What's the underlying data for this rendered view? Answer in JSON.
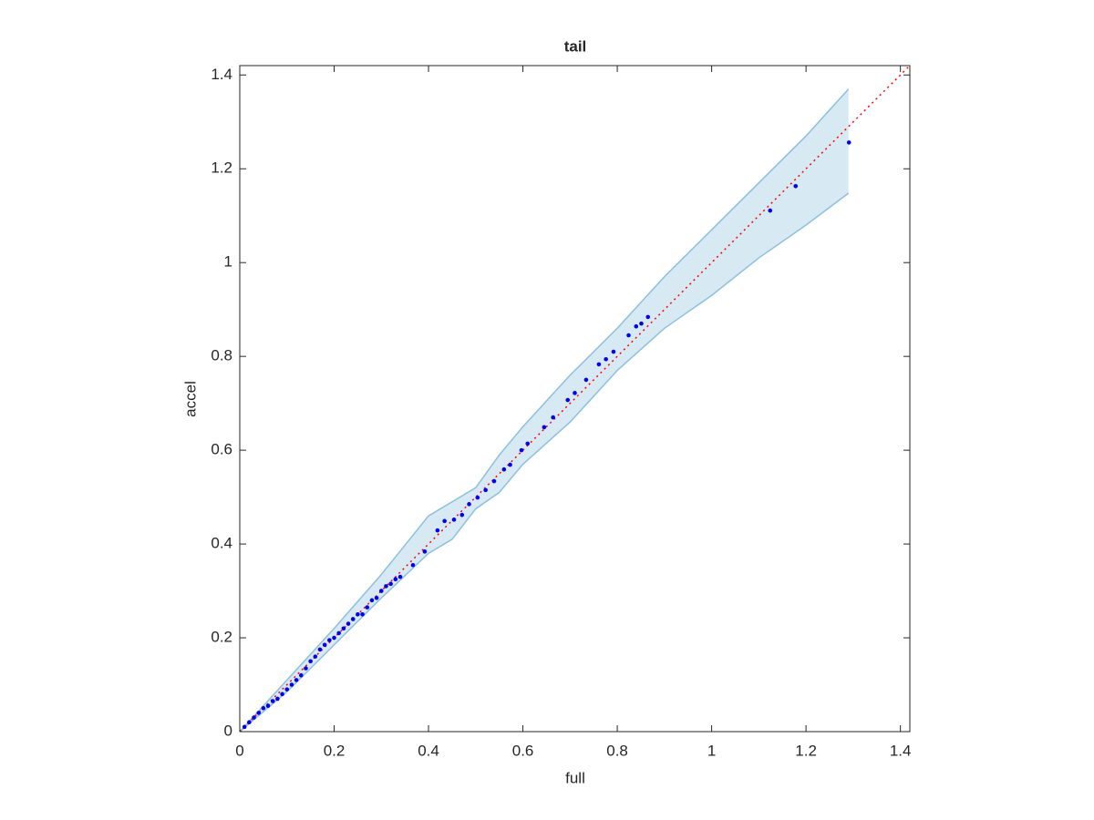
{
  "chart_data": {
    "type": "scatter",
    "title": "tail",
    "x_label": "full",
    "y_label": "accel",
    "xlim": [
      0,
      1.42
    ],
    "ylim": [
      0,
      1.42
    ],
    "xticks": [
      0,
      0.2,
      0.4,
      0.6,
      0.8,
      1,
      1.2,
      1.4
    ],
    "yticks": [
      0,
      0.2,
      0.4,
      0.6,
      0.8,
      1,
      1.2,
      1.4
    ],
    "points": {
      "color": "#0000ff",
      "x": [
        0.01,
        0.02,
        0.03,
        0.04,
        0.05,
        0.06,
        0.07,
        0.08,
        0.09,
        0.1,
        0.11,
        0.12,
        0.13,
        0.14,
        0.15,
        0.16,
        0.17,
        0.18,
        0.19,
        0.2,
        0.21,
        0.22,
        0.23,
        0.24,
        0.25,
        0.26,
        0.27,
        0.28,
        0.29,
        0.3,
        0.31,
        0.32,
        0.33,
        0.34,
        0.367,
        0.392,
        0.419,
        0.434,
        0.454,
        0.471,
        0.486,
        0.504,
        0.521,
        0.539,
        0.56,
        0.573,
        0.597,
        0.61,
        0.645,
        0.664,
        0.695,
        0.71,
        0.734,
        0.761,
        0.776,
        0.792,
        0.824,
        0.84,
        0.851,
        0.865,
        1.124,
        1.178,
        1.291
      ],
      "y": [
        0.01,
        0.02,
        0.03,
        0.04,
        0.05,
        0.055,
        0.065,
        0.07,
        0.08,
        0.09,
        0.1,
        0.11,
        0.12,
        0.135,
        0.15,
        0.16,
        0.175,
        0.185,
        0.195,
        0.2,
        0.21,
        0.22,
        0.23,
        0.24,
        0.25,
        0.25,
        0.265,
        0.28,
        0.285,
        0.3,
        0.31,
        0.315,
        0.325,
        0.33,
        0.355,
        0.384,
        0.429,
        0.449,
        0.452,
        0.462,
        0.485,
        0.499,
        0.515,
        0.534,
        0.559,
        0.569,
        0.6,
        0.614,
        0.649,
        0.67,
        0.707,
        0.722,
        0.75,
        0.783,
        0.794,
        0.81,
        0.845,
        0.864,
        0.87,
        0.884,
        1.111,
        1.163,
        1.256
      ]
    },
    "band": {
      "color": "#8cc0de",
      "x": [
        0,
        0.1,
        0.2,
        0.3,
        0.4,
        0.45,
        0.5,
        0.55,
        0.6,
        0.7,
        0.8,
        0.9,
        1.0,
        1.1,
        1.2,
        1.29
      ],
      "upper": [
        0,
        0.11,
        0.22,
        0.335,
        0.46,
        0.49,
        0.52,
        0.59,
        0.65,
        0.76,
        0.86,
        0.97,
        1.07,
        1.17,
        1.27,
        1.37
      ],
      "lower": [
        0,
        0.085,
        0.185,
        0.285,
        0.38,
        0.41,
        0.475,
        0.51,
        0.57,
        0.66,
        0.77,
        0.86,
        0.93,
        1.01,
        1.08,
        1.148
      ]
    },
    "reference_line": {
      "color": "#ff0000",
      "x": [
        0,
        1.42
      ],
      "y": [
        0,
        1.42
      ]
    }
  }
}
